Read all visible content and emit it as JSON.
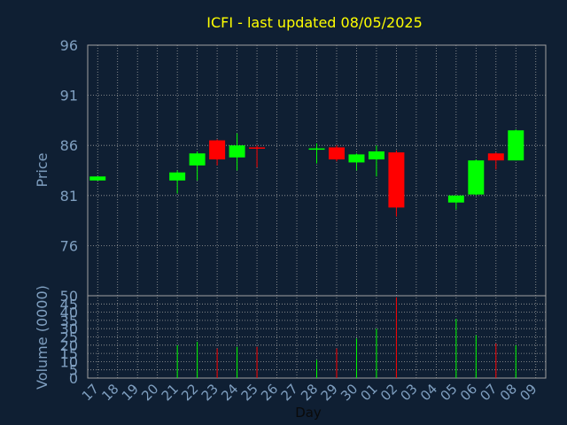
{
  "chart_data": {
    "type": "candlestick",
    "title": "ICFI - last updated 08/05/2025",
    "xlabel": "Day",
    "price_panel": {
      "ylabel": "Price",
      "ylim": [
        71,
        96
      ],
      "yticks": [
        96,
        91,
        86,
        81,
        76
      ]
    },
    "volume_panel": {
      "ylabel": "Volume (0000)",
      "ylim": [
        0,
        50
      ],
      "yticks": [
        50,
        45,
        40,
        35,
        30,
        25,
        20,
        15,
        10,
        5,
        0
      ]
    },
    "x_ticks": [
      "17",
      "18",
      "19",
      "20",
      "21",
      "22",
      "23",
      "24",
      "25",
      "26",
      "27",
      "28",
      "29",
      "30",
      "01",
      "02",
      "03",
      "04",
      "05",
      "06",
      "07",
      "08",
      "09"
    ],
    "grid": true,
    "colors": {
      "background": "#0f1f33",
      "up": "#00ff00",
      "down": "#ff0000",
      "text": "#7f9fc0",
      "title": "#ffff00",
      "grid": "#a0a0a0"
    },
    "candles": [
      {
        "day": "17",
        "open": 82.5,
        "close": 82.9,
        "high": 82.9,
        "low": 82.5
      },
      {
        "day": "21",
        "open": 82.5,
        "close": 83.3,
        "high": 83.5,
        "low": 81.2
      },
      {
        "day": "22",
        "open": 84.0,
        "close": 85.2,
        "high": 85.4,
        "low": 82.5
      },
      {
        "day": "23",
        "open": 86.5,
        "close": 84.6,
        "high": 86.6,
        "low": 84.0
      },
      {
        "day": "24",
        "open": 84.8,
        "close": 86.0,
        "high": 87.2,
        "low": 83.5
      },
      {
        "day": "25",
        "open": 85.8,
        "close": 85.7,
        "high": 86.0,
        "low": 83.8
      },
      {
        "day": "28",
        "open": 85.6,
        "close": 85.7,
        "high": 86.2,
        "low": 84.2
      },
      {
        "day": "29",
        "open": 85.8,
        "close": 84.6,
        "high": 86.0,
        "low": 84.4
      },
      {
        "day": "30",
        "open": 84.3,
        "close": 85.1,
        "high": 85.2,
        "low": 83.5
      },
      {
        "day": "01",
        "open": 84.6,
        "close": 85.4,
        "high": 86.0,
        "low": 82.9
      },
      {
        "day": "02",
        "open": 85.3,
        "close": 79.8,
        "high": 85.5,
        "low": 78.9
      },
      {
        "day": "05",
        "open": 80.3,
        "close": 81.0,
        "high": 81.0,
        "low": 79.6
      },
      {
        "day": "06",
        "open": 81.1,
        "close": 84.5,
        "high": 84.6,
        "low": 81.0
      },
      {
        "day": "07",
        "open": 85.2,
        "close": 84.5,
        "high": 85.3,
        "low": 83.6
      },
      {
        "day": "08",
        "open": 84.5,
        "close": 87.5,
        "high": 87.6,
        "low": 84.5
      }
    ],
    "volume": [
      {
        "day": "17",
        "value": 0,
        "color": "up"
      },
      {
        "day": "21",
        "value": 20,
        "color": "up"
      },
      {
        "day": "22",
        "value": 22,
        "color": "up"
      },
      {
        "day": "23",
        "value": 18,
        "color": "down"
      },
      {
        "day": "24",
        "value": 19,
        "color": "up"
      },
      {
        "day": "25",
        "value": 19,
        "color": "down"
      },
      {
        "day": "28",
        "value": 11,
        "color": "up"
      },
      {
        "day": "29",
        "value": 18,
        "color": "down"
      },
      {
        "day": "30",
        "value": 24,
        "color": "up"
      },
      {
        "day": "01",
        "value": 30,
        "color": "up"
      },
      {
        "day": "02",
        "value": 49,
        "color": "down"
      },
      {
        "day": "05",
        "value": 36,
        "color": "up"
      },
      {
        "day": "06",
        "value": 26,
        "color": "up"
      },
      {
        "day": "07",
        "value": 21,
        "color": "down"
      },
      {
        "day": "08",
        "value": 20,
        "color": "up"
      }
    ]
  }
}
